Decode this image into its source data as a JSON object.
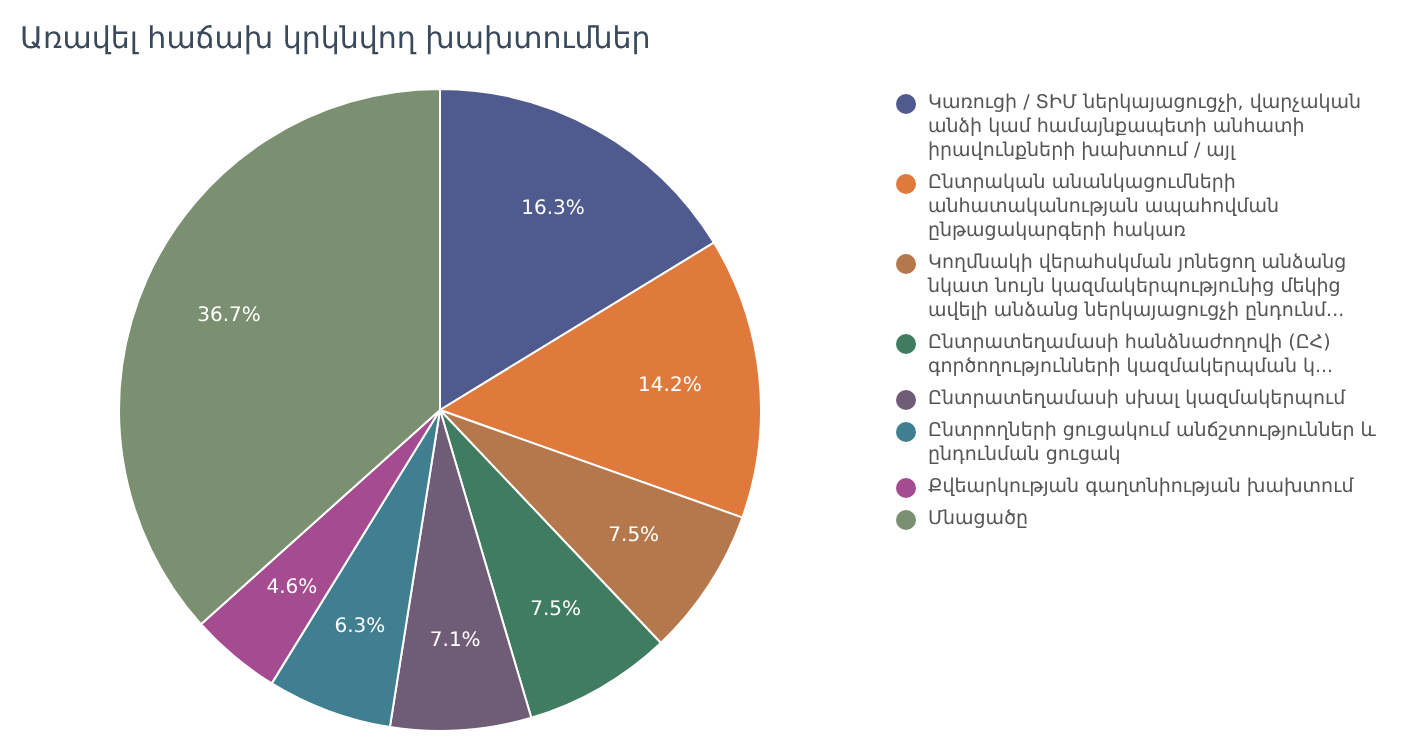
{
  "chart_data": {
    "type": "pie",
    "title": "Առավել հաճախ կրկնվող խախտումներ",
    "categories": [
      "Կառուցի / ՏԻՄ ներկայացուցչի, վարչական անձի կամ համայնքապետի անհատի իրավունքների խախտում / այլ",
      "Ընտրական անանկացումների անհատականության ապահովման ընթացակարգերի հակառ",
      "Կողմնակի վերահսկման յոնեցող անձանց նկատ նույն կազմակերպությունից մեկից ավելի անձանց ներկայացուցչի ընդունմ...",
      "Ընտրատեղամասի հանձնաժողովի (ԸՀ) գործողությունների կազմակերպման կ...",
      "Ընտրատեղամասի սխալ կազմակերպում",
      "Ընտրողների ցուցակում անճշտություններ և ընդունման ցուցակ",
      "Քվեարկության գաղտնիության խախտում",
      "Մնացածը"
    ],
    "values": [
      16.3,
      14.2,
      7.5,
      7.5,
      7.1,
      6.3,
      4.6,
      36.7
    ],
    "value_labels": [
      "16.3%",
      "14.2%",
      "7.5%",
      "7.5%",
      "7.1%",
      "6.3%",
      "4.6%",
      "36.7%"
    ],
    "colors": [
      "#4f5a8e",
      "#e07a3c",
      "#b5774c",
      "#3f7c60",
      "#6f5d78",
      "#3f7f8f",
      "#a54b8f",
      "#7b8f71"
    ],
    "legend": "right"
  }
}
